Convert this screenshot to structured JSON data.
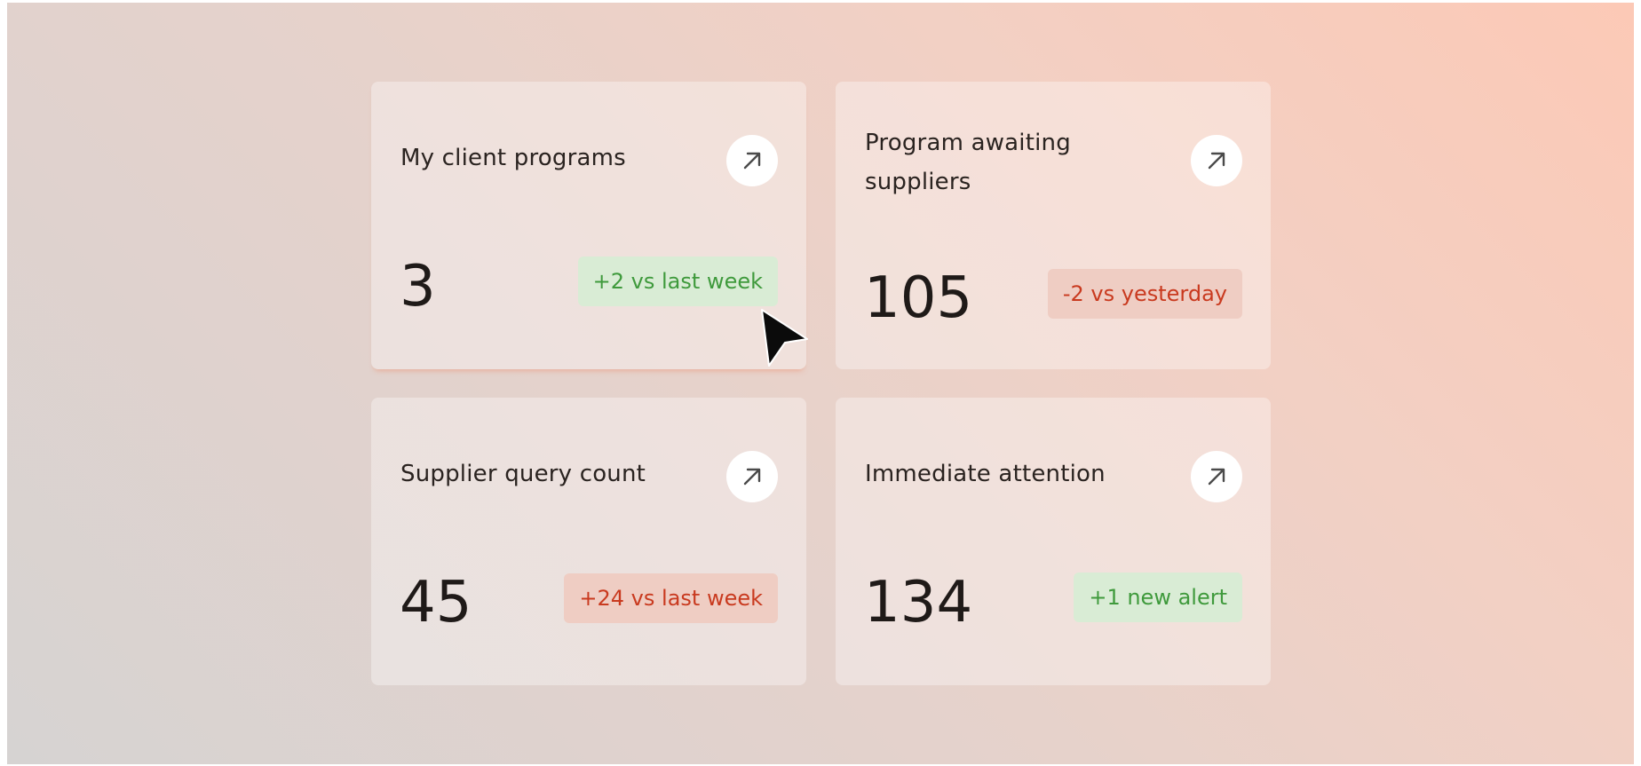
{
  "cards": [
    {
      "title": "My client programs",
      "value": "3",
      "delta": "+2 vs last week",
      "trend": "up"
    },
    {
      "title": "Program awaiting suppliers",
      "value": "105",
      "delta": "-2 vs yesterday",
      "trend": "down"
    },
    {
      "title": "Supplier query count",
      "value": "45",
      "delta": "+24 vs last week",
      "trend": "down"
    },
    {
      "title": "Immediate attention",
      "value": "134",
      "delta": "+1 new alert",
      "trend": "up"
    }
  ],
  "icons": {
    "open": "arrow-up-right-icon",
    "cursor": "mouse-pointer-icon"
  },
  "colors": {
    "positive_text": "#3f9a3c",
    "positive_bg": "#d9ecd5",
    "negative_text": "#c93a1f",
    "negative_bg": "#efcdc3"
  }
}
